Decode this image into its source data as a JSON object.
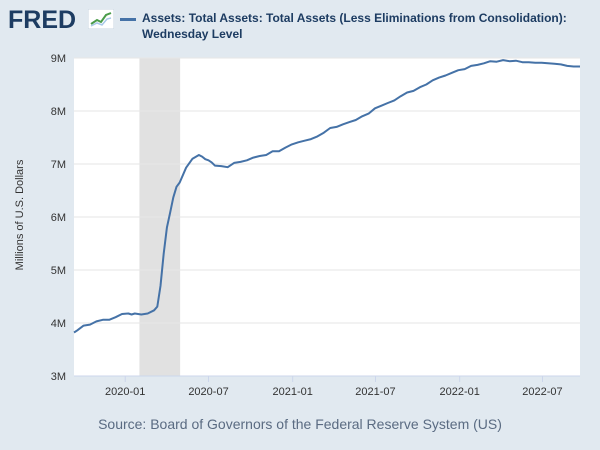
{
  "header": {
    "logo_text": "FRED",
    "logo_icon": "trend-line-icon",
    "legend_label": "Assets: Total Assets: Total Assets (Less Eliminations from Consolidation): Wednesday Level"
  },
  "source_text": "Source: Board of Governors of the Federal Reserve System (US)",
  "colors": {
    "background": "#e1e9f0",
    "plot": "#ffffff",
    "series": "#4572a7",
    "recession": "#e1e1e1",
    "logo": "#1d3c62"
  },
  "chart_data": {
    "type": "line",
    "title": "Assets: Total Assets: Total Assets (Less Eliminations from Consolidation): Wednesday Level",
    "xlabel": "",
    "ylabel": "Millions of U.S. Dollars",
    "ylim": [
      3,
      9
    ],
    "xlim": [
      "2019-09-11",
      "2022-09-21"
    ],
    "y_unit": "M",
    "y_ticks": [
      {
        "value": 3,
        "label": "3M"
      },
      {
        "value": 4,
        "label": "4M"
      },
      {
        "value": 5,
        "label": "5M"
      },
      {
        "value": 6,
        "label": "6M"
      },
      {
        "value": 7,
        "label": "7M"
      },
      {
        "value": 8,
        "label": "8M"
      },
      {
        "value": 9,
        "label": "9M"
      }
    ],
    "x_ticks": [
      {
        "date": "2020-01-01",
        "label": "2020-01"
      },
      {
        "date": "2020-07-01",
        "label": "2020-07"
      },
      {
        "date": "2021-01-01",
        "label": "2021-01"
      },
      {
        "date": "2021-07-01",
        "label": "2021-07"
      },
      {
        "date": "2022-01-01",
        "label": "2022-01"
      },
      {
        "date": "2022-07-01",
        "label": "2022-07"
      }
    ],
    "recession": {
      "start": "2020-02-01",
      "end": "2020-04-30"
    },
    "grid": true,
    "series": [
      {
        "name": "Assets: Total Assets: Total Assets (Less Eliminations from Consolidation): Wednesday Level",
        "points": [
          [
            "2019-09-11",
            3.82
          ],
          [
            "2019-09-18",
            3.86
          ],
          [
            "2019-10-02",
            3.95
          ],
          [
            "2019-10-16",
            3.97
          ],
          [
            "2019-10-30",
            4.03
          ],
          [
            "2019-11-13",
            4.06
          ],
          [
            "2019-11-27",
            4.06
          ],
          [
            "2019-12-11",
            4.11
          ],
          [
            "2019-12-25",
            4.17
          ],
          [
            "2020-01-08",
            4.18
          ],
          [
            "2020-01-15",
            4.16
          ],
          [
            "2020-01-22",
            4.18
          ],
          [
            "2020-02-05",
            4.16
          ],
          [
            "2020-02-19",
            4.18
          ],
          [
            "2020-03-04",
            4.24
          ],
          [
            "2020-03-11",
            4.31
          ],
          [
            "2020-03-18",
            4.7
          ],
          [
            "2020-03-25",
            5.31
          ],
          [
            "2020-04-01",
            5.8
          ],
          [
            "2020-04-08",
            6.08
          ],
          [
            "2020-04-15",
            6.37
          ],
          [
            "2020-04-22",
            6.57
          ],
          [
            "2020-04-29",
            6.65
          ],
          [
            "2020-05-13",
            6.93
          ],
          [
            "2020-05-27",
            7.1
          ],
          [
            "2020-06-10",
            7.17
          ],
          [
            "2020-06-17",
            7.14
          ],
          [
            "2020-06-24",
            7.09
          ],
          [
            "2020-07-01",
            7.07
          ],
          [
            "2020-07-08",
            7.03
          ],
          [
            "2020-07-15",
            6.97
          ],
          [
            "2020-07-29",
            6.96
          ],
          [
            "2020-08-12",
            6.94
          ],
          [
            "2020-08-26",
            7.02
          ],
          [
            "2020-09-09",
            7.04
          ],
          [
            "2020-09-23",
            7.07
          ],
          [
            "2020-10-07",
            7.12
          ],
          [
            "2020-10-21",
            7.15
          ],
          [
            "2020-11-04",
            7.17
          ],
          [
            "2020-11-18",
            7.24
          ],
          [
            "2020-12-02",
            7.24
          ],
          [
            "2020-12-16",
            7.31
          ],
          [
            "2020-12-30",
            7.37
          ],
          [
            "2021-01-13",
            7.41
          ],
          [
            "2021-01-27",
            7.44
          ],
          [
            "2021-02-10",
            7.47
          ],
          [
            "2021-02-24",
            7.52
          ],
          [
            "2021-03-10",
            7.59
          ],
          [
            "2021-03-24",
            7.68
          ],
          [
            "2021-04-07",
            7.7
          ],
          [
            "2021-04-21",
            7.75
          ],
          [
            "2021-05-05",
            7.79
          ],
          [
            "2021-05-19",
            7.83
          ],
          [
            "2021-06-02",
            7.9
          ],
          [
            "2021-06-16",
            7.95
          ],
          [
            "2021-06-30",
            8.05
          ],
          [
            "2021-07-14",
            8.1
          ],
          [
            "2021-07-28",
            8.15
          ],
          [
            "2021-08-11",
            8.2
          ],
          [
            "2021-08-25",
            8.28
          ],
          [
            "2021-09-08",
            8.35
          ],
          [
            "2021-09-22",
            8.38
          ],
          [
            "2021-10-06",
            8.45
          ],
          [
            "2021-10-20",
            8.5
          ],
          [
            "2021-11-03",
            8.58
          ],
          [
            "2021-11-17",
            8.63
          ],
          [
            "2021-12-01",
            8.67
          ],
          [
            "2021-12-15",
            8.72
          ],
          [
            "2021-12-29",
            8.77
          ],
          [
            "2022-01-12",
            8.79
          ],
          [
            "2022-01-26",
            8.85
          ],
          [
            "2022-02-09",
            8.87
          ],
          [
            "2022-02-23",
            8.9
          ],
          [
            "2022-03-09",
            8.94
          ],
          [
            "2022-03-23",
            8.93
          ],
          [
            "2022-04-06",
            8.96
          ],
          [
            "2022-04-20",
            8.94
          ],
          [
            "2022-05-04",
            8.95
          ],
          [
            "2022-05-18",
            8.92
          ],
          [
            "2022-06-01",
            8.92
          ],
          [
            "2022-06-15",
            8.91
          ],
          [
            "2022-06-29",
            8.91
          ],
          [
            "2022-07-13",
            8.9
          ],
          [
            "2022-07-27",
            8.89
          ],
          [
            "2022-08-10",
            8.88
          ],
          [
            "2022-08-24",
            8.85
          ],
          [
            "2022-09-07",
            8.84
          ],
          [
            "2022-09-21",
            8.84
          ]
        ]
      }
    ]
  }
}
